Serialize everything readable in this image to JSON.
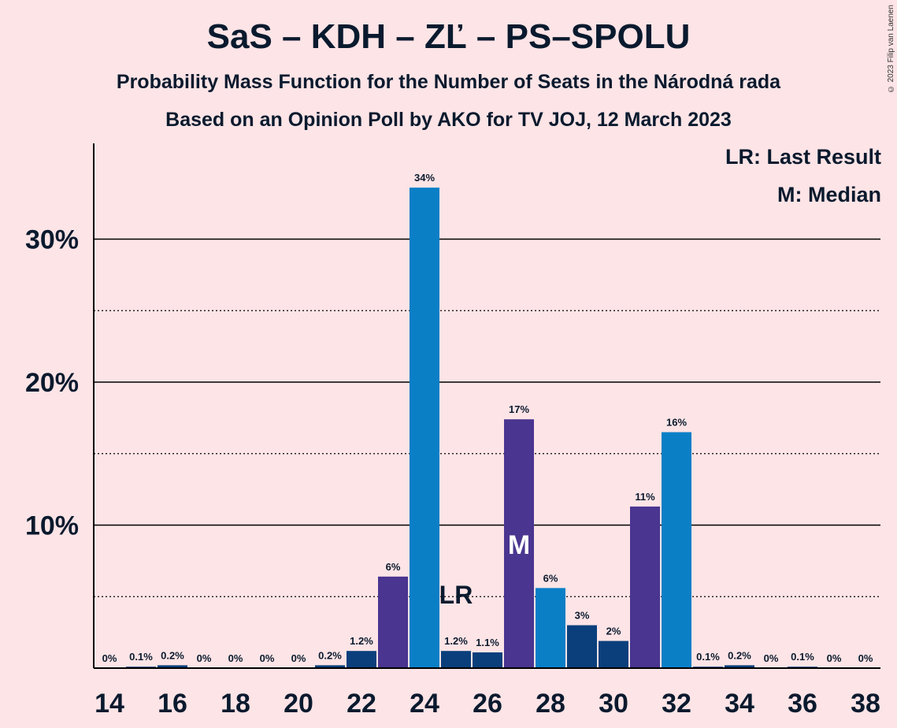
{
  "title": "SaS – KDH – ZĽ – PS–SPOLU",
  "subtitle1": "Probability Mass Function for the Number of Seats in the Národná rada",
  "subtitle2": "Based on an Opinion Poll by AKO for TV JOJ, 12 March 2023",
  "copyright": "© 2023 Filip van Laenen",
  "legend": {
    "last_result": "LR: Last Result",
    "median": "M: Median"
  },
  "colors": {
    "background": "#fde4e6",
    "SaS": "#0a3f7c",
    "KDH": "#4a3590",
    "PS": "#0a7fc6"
  },
  "chart_data": {
    "type": "bar",
    "x": [
      14,
      15,
      16,
      17,
      18,
      19,
      20,
      21,
      22,
      23,
      24,
      25,
      26,
      27,
      28,
      29,
      30,
      31,
      32,
      33,
      34,
      35,
      36,
      37,
      38
    ],
    "values": [
      0,
      0.1,
      0.2,
      0,
      0,
      0,
      0,
      0.2,
      1.2,
      6.4,
      33.6,
      1.2,
      1.1,
      17.4,
      5.6,
      3.0,
      1.9,
      11.3,
      16.5,
      0.1,
      0.2,
      0,
      0.1,
      0,
      0
    ],
    "labels": [
      "0%",
      "0.1%",
      "0.2%",
      "0%",
      "0%",
      "0%",
      "0%",
      "0.2%",
      "1.2%",
      "6%",
      "34%",
      "1.2%",
      "1.1%",
      "17%",
      "6%",
      "3%",
      "2%",
      "11%",
      "16%",
      "0.1%",
      "0.2%",
      "0%",
      "0.1%",
      "0%",
      "0%"
    ],
    "colors": [
      "#0a3f7c",
      "#0a3f7c",
      "#0a3f7c",
      "#0a3f7c",
      "#0a3f7c",
      "#0a3f7c",
      "#0a3f7c",
      "#0a3f7c",
      "#0a3f7c",
      "#4a3590",
      "#0a7fc6",
      "#0a3f7c",
      "#0a3f7c",
      "#4a3590",
      "#0a7fc6",
      "#0a3f7c",
      "#0a3f7c",
      "#4a3590",
      "#0a7fc6",
      "#0a3f7c",
      "#0a3f7c",
      "#0a3f7c",
      "#0a3f7c",
      "#0a3f7c",
      "#0a3f7c"
    ],
    "x_ticks": [
      14,
      16,
      18,
      20,
      22,
      24,
      26,
      28,
      30,
      32,
      34,
      36,
      38
    ],
    "y_ticks": [
      10,
      20,
      30
    ],
    "y_tick_labels": [
      "10%",
      "20%",
      "30%"
    ],
    "minor_gridlines": [
      5,
      15,
      25
    ],
    "ylim": [
      0,
      36.5
    ],
    "last_result": {
      "x": 25,
      "label": "LR"
    },
    "median": {
      "x": 27,
      "label": "M"
    }
  }
}
